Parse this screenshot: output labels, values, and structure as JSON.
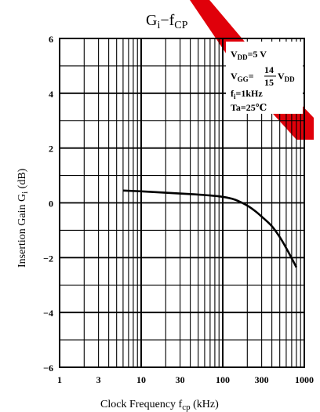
{
  "chart_data": {
    "type": "line",
    "title_main": "G",
    "title_main_sub": "i",
    "title_dash": "−f",
    "title_dash_sub": "CP",
    "xlabel_main": "Clock Frequency  f",
    "xlabel_sub": "cp",
    "xlabel_unit": " (kHz)",
    "ylabel_main": "Insertion Gain  G",
    "ylabel_sub": "i",
    "ylabel_unit": " (dB)",
    "x_scale": "log",
    "xlim": [
      1,
      1000
    ],
    "ylim": [
      -6,
      6
    ],
    "x_ticks": [
      1,
      3,
      10,
      30,
      100,
      300,
      1000
    ],
    "x_tick_labels": [
      "1",
      "3",
      "10",
      "30",
      "100",
      "300",
      "1000"
    ],
    "y_ticks": [
      -6,
      -4,
      -2,
      0,
      2,
      4,
      6
    ],
    "y_tick_labels": [
      "−6",
      "−4",
      "−2",
      "0",
      "2",
      "4",
      "6"
    ],
    "grid": true,
    "series": [
      {
        "x": [
          6,
          10,
          20,
          40,
          70,
          100,
          130,
          160,
          200,
          250,
          300,
          400,
          500,
          600,
          800
        ],
        "y": [
          0.45,
          0.42,
          0.37,
          0.32,
          0.27,
          0.22,
          0.15,
          0.05,
          -0.1,
          -0.3,
          -0.5,
          -0.85,
          -1.25,
          -1.65,
          -2.35
        ]
      }
    ],
    "annotation": {
      "vdd": {
        "main": "V",
        "sub": "DD",
        "rest": "=5 V"
      },
      "vgg": {
        "main": "V",
        "sub": "GG",
        "eq": "=",
        "num": "14",
        "den": "15",
        "v": "V",
        "vsub": "DD"
      },
      "fi": {
        "main": "f",
        "sub": "i",
        "rest": "=1kHz"
      },
      "ta": {
        "text": "Ta=25℃"
      }
    }
  }
}
